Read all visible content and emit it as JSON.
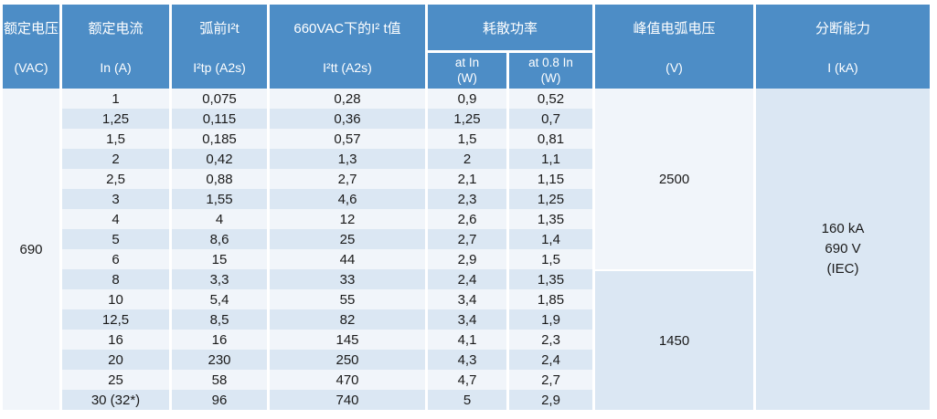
{
  "colors": {
    "header_blue": "#4d8dc6",
    "stripe_light": "#f1f5fa",
    "stripe_blue": "#dbe7f3",
    "text_dark": "#1a1a1a"
  },
  "table": {
    "header": {
      "rated_voltage": {
        "line1": "额定电压",
        "line2": "(VAC)"
      },
      "rated_current": {
        "line1": "额定电流",
        "line2": "In (A)"
      },
      "prearcing_i2t": {
        "line1": "弧前I²t",
        "line2": "I²tp (A2s)"
      },
      "total_i2t_660vac": {
        "line1": "660VAC下的I² t值",
        "line2": "I²tt (A2s)"
      },
      "power_dissipation_group": "耗散功率",
      "power_at_in": {
        "line1": "at In",
        "line2": "(W)"
      },
      "power_at_08_in": {
        "line1": "at 0.8 In",
        "line2": "(W)"
      },
      "peak_arc_voltage": {
        "line1": "峰值电弧电压",
        "line2": "(V)"
      },
      "breaking_capacity": {
        "line1": "分断能力",
        "line2": "I (kA)"
      }
    },
    "rated_voltage_value": "690",
    "peak_arc_voltage_values": {
      "rows_1_9": "2500",
      "rows_10_16": "1450"
    },
    "breaking_capacity_value": {
      "line1": "160 kA",
      "line2": "690 V",
      "line3": "(IEC)"
    },
    "rows": [
      {
        "in_a": "1",
        "i2tp": "0,075",
        "i2tt": "0,28",
        "p_at_in": "0,9",
        "p_at_08in": "0,52"
      },
      {
        "in_a": "1,25",
        "i2tp": "0,115",
        "i2tt": "0,36",
        "p_at_in": "1,25",
        "p_at_08in": "0,7"
      },
      {
        "in_a": "1,5",
        "i2tp": "0,185",
        "i2tt": "0,57",
        "p_at_in": "1,5",
        "p_at_08in": "0,81"
      },
      {
        "in_a": "2",
        "i2tp": "0,42",
        "i2tt": "1,3",
        "p_at_in": "2",
        "p_at_08in": "1,1"
      },
      {
        "in_a": "2,5",
        "i2tp": "0,88",
        "i2tt": "2,7",
        "p_at_in": "2,1",
        "p_at_08in": "1,15"
      },
      {
        "in_a": "3",
        "i2tp": "1,55",
        "i2tt": "4,6",
        "p_at_in": "2,3",
        "p_at_08in": "1,25"
      },
      {
        "in_a": "4",
        "i2tp": "4",
        "i2tt": "12",
        "p_at_in": "2,6",
        "p_at_08in": "1,35"
      },
      {
        "in_a": "5",
        "i2tp": "8,6",
        "i2tt": "25",
        "p_at_in": "2,7",
        "p_at_08in": "1,4"
      },
      {
        "in_a": "6",
        "i2tp": "15",
        "i2tt": "44",
        "p_at_in": "2,9",
        "p_at_08in": "1,5"
      },
      {
        "in_a": "8",
        "i2tp": "3,3",
        "i2tt": "33",
        "p_at_in": "2,4",
        "p_at_08in": "1,35"
      },
      {
        "in_a": "10",
        "i2tp": "5,4",
        "i2tt": "55",
        "p_at_in": "3,4",
        "p_at_08in": "1,85"
      },
      {
        "in_a": "12,5",
        "i2tp": "8,5",
        "i2tt": "82",
        "p_at_in": "3,4",
        "p_at_08in": "1,9"
      },
      {
        "in_a": "16",
        "i2tp": "16",
        "i2tt": "145",
        "p_at_in": "4,1",
        "p_at_08in": "2,3"
      },
      {
        "in_a": "20",
        "i2tp": "230",
        "i2tt": "250",
        "p_at_in": "4,3",
        "p_at_08in": "2,4"
      },
      {
        "in_a": "25",
        "i2tp": "58",
        "i2tt": "470",
        "p_at_in": "4,7",
        "p_at_08in": "2,7"
      },
      {
        "in_a": "30 (32*)",
        "i2tp": "96",
        "i2tt": "740",
        "p_at_in": "5",
        "p_at_08in": "2,9"
      }
    ]
  }
}
